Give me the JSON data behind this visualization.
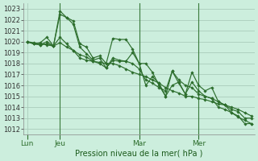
{
  "title": "Pression niveau de la mer( hPa )",
  "bg_color": "#cceedd",
  "grid_color": "#aaccbb",
  "line_color": "#2d6e2d",
  "ylim": [
    1011.5,
    1023.5
  ],
  "yticks": [
    1012,
    1013,
    1014,
    1015,
    1016,
    1017,
    1018,
    1019,
    1020,
    1021,
    1022,
    1023
  ],
  "xtick_labels": [
    "Lun",
    "Jeu",
    "Mar",
    "Mer"
  ],
  "xtick_positions": [
    0,
    5,
    17,
    26
  ],
  "vline_positions": [
    5,
    17,
    26
  ],
  "total_points": 35,
  "series": [
    [
      1020.0,
      1019.8,
      1019.9,
      1020.4,
      1019.6,
      1022.5,
      1022.2,
      1021.9,
      1019.8,
      1019.5,
      1018.5,
      1018.7,
      1018.0,
      1020.3,
      1020.2,
      1020.2,
      1019.3,
      1018.0,
      1018.0,
      1017.2,
      1016.0,
      1015.0,
      1017.3,
      1016.2,
      1015.2,
      1017.2,
      1016.0,
      1015.5,
      1015.8,
      1014.5,
      1014.2,
      1013.5,
      1013.1,
      1012.8,
      1012.5
    ],
    [
      1020.0,
      1019.8,
      1019.7,
      1020.0,
      1019.6,
      1022.8,
      1022.2,
      1021.6,
      1019.5,
      1018.9,
      1018.3,
      1018.5,
      1017.6,
      1018.3,
      1018.2,
      1018.2,
      1019.0,
      1018.0,
      1016.0,
      1016.8,
      1016.2,
      1015.0,
      1016.0,
      1016.3,
      1015.2,
      1016.3,
      1015.5,
      1015.0,
      1014.8,
      1014.0,
      1013.8,
      1013.5,
      1013.2,
      1012.5,
      1012.5
    ],
    [
      1020.0,
      1019.8,
      1019.7,
      1019.8,
      1019.6,
      1020.4,
      1019.8,
      1019.2,
      1018.8,
      1018.6,
      1018.2,
      1018.0,
      1017.6,
      1018.5,
      1018.3,
      1018.2,
      1018.0,
      1017.5,
      1016.5,
      1016.2,
      1015.8,
      1015.5,
      1017.3,
      1016.5,
      1016.0,
      1015.8,
      1015.2,
      1015.0,
      1014.8,
      1014.5,
      1014.2,
      1013.8,
      1013.6,
      1013.0,
      1013.0
    ],
    [
      1020.0,
      1019.9,
      1019.8,
      1019.7,
      1019.6,
      1019.9,
      1019.5,
      1019.2,
      1018.5,
      1018.3,
      1018.2,
      1018.1,
      1018.0,
      1018.0,
      1017.8,
      1017.5,
      1017.2,
      1017.0,
      1016.8,
      1016.5,
      1016.2,
      1015.8,
      1015.5,
      1015.3,
      1015.0,
      1015.0,
      1014.8,
      1014.7,
      1014.5,
      1014.3,
      1014.2,
      1014.0,
      1013.8,
      1013.5,
      1013.2
    ]
  ]
}
